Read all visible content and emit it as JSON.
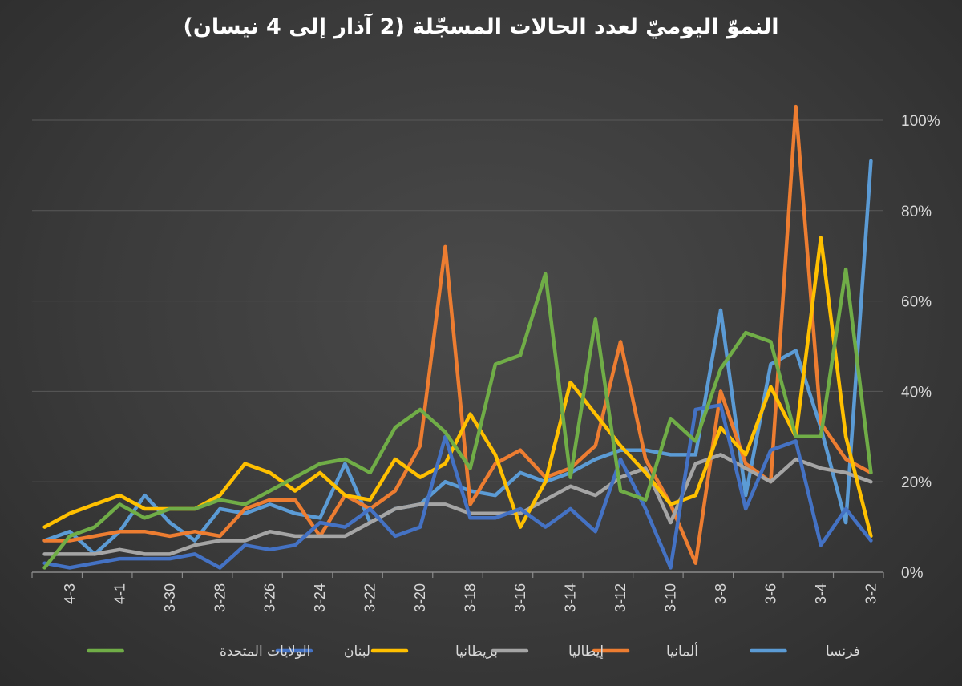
{
  "chart_data": {
    "type": "line",
    "title": "النموّ اليوميّ لعدد الحالات المسجّلة (2 آذار إلى 4 نيسان)",
    "x_direction": "right-to-left",
    "x": [
      "3-2",
      "3-3",
      "3-4",
      "3-5",
      "3-6",
      "3-7",
      "3-8",
      "3-9",
      "3-10",
      "3-11",
      "3-12",
      "3-13",
      "3-14",
      "3-15",
      "3-16",
      "3-17",
      "3-18",
      "3-19",
      "3-20",
      "3-21",
      "3-22",
      "3-23",
      "3-24",
      "3-25",
      "3-26",
      "3-27",
      "3-28",
      "3-29",
      "3-30",
      "3-31",
      "4-1",
      "4-2",
      "4-3",
      "4-4"
    ],
    "x_tick_labels": [
      "3-2",
      "3-4",
      "3-6",
      "3-8",
      "3-10",
      "3-12",
      "3-14",
      "3-16",
      "3-18",
      "3-20",
      "3-22",
      "3-24",
      "3-26",
      "3-28",
      "3-30",
      "4-1",
      "4-3"
    ],
    "y_ticks": [
      "0%",
      "20%",
      "40%",
      "60%",
      "80%",
      "100%"
    ],
    "ylim": [
      0,
      100
    ],
    "y_unit": "%",
    "grid": true,
    "legend_position": "bottom",
    "series": [
      {
        "name": "فرنسا",
        "color": "#5b9bd5",
        "values": [
          91,
          11,
          32,
          49,
          46,
          17,
          58,
          26,
          26,
          27,
          27,
          25,
          22,
          20,
          22,
          17,
          18,
          20,
          15,
          14,
          11,
          24,
          12,
          13,
          15,
          13,
          14,
          7,
          11,
          17,
          9,
          4,
          9,
          7
        ]
      },
      {
        "name": "ألمانيا",
        "color": "#ed7d31",
        "values": [
          22,
          25,
          33,
          103,
          20,
          24,
          40,
          2,
          15,
          25,
          51,
          28,
          23,
          21,
          27,
          24,
          15,
          72,
          28,
          18,
          14,
          17,
          8,
          16,
          16,
          14,
          8,
          9,
          8,
          9,
          9,
          8,
          7,
          7
        ]
      },
      {
        "name": "إيطاليا",
        "color": "#a5a5a5",
        "values": [
          20,
          22,
          23,
          25,
          20,
          23,
          26,
          24,
          11,
          23,
          21,
          17,
          19,
          16,
          13,
          13,
          13,
          15,
          15,
          14,
          11,
          8,
          8,
          8,
          9,
          7,
          7,
          6,
          4,
          4,
          5,
          4,
          4,
          4
        ]
      },
      {
        "name": "بريطانيا",
        "color": "#ffc000",
        "values": [
          8,
          30,
          74,
          30,
          41,
          26,
          32,
          17,
          15,
          22,
          28,
          35,
          42,
          20,
          10,
          26,
          35,
          24,
          21,
          25,
          16,
          17,
          22,
          18,
          22,
          24,
          17,
          14,
          14,
          14,
          17,
          15,
          13,
          10
        ]
      },
      {
        "name": "لبنان",
        "color": "#4472c4",
        "values": [
          7,
          14,
          6,
          29,
          27,
          14,
          37,
          36,
          1,
          14,
          25,
          9,
          14,
          10,
          14,
          12,
          12,
          30,
          10,
          8,
          14,
          10,
          11,
          6,
          5,
          6,
          1,
          4,
          3,
          3,
          3,
          2,
          1,
          2
        ]
      },
      {
        "name": "الولايات المتحدة",
        "color": "#70ad47",
        "values": [
          22,
          67,
          30,
          30,
          51,
          53,
          45,
          29,
          34,
          16,
          18,
          56,
          21,
          66,
          48,
          46,
          23,
          31,
          36,
          32,
          22,
          25,
          24,
          21,
          18,
          15,
          16,
          14,
          14,
          12,
          15,
          10,
          8,
          1
        ]
      }
    ]
  }
}
